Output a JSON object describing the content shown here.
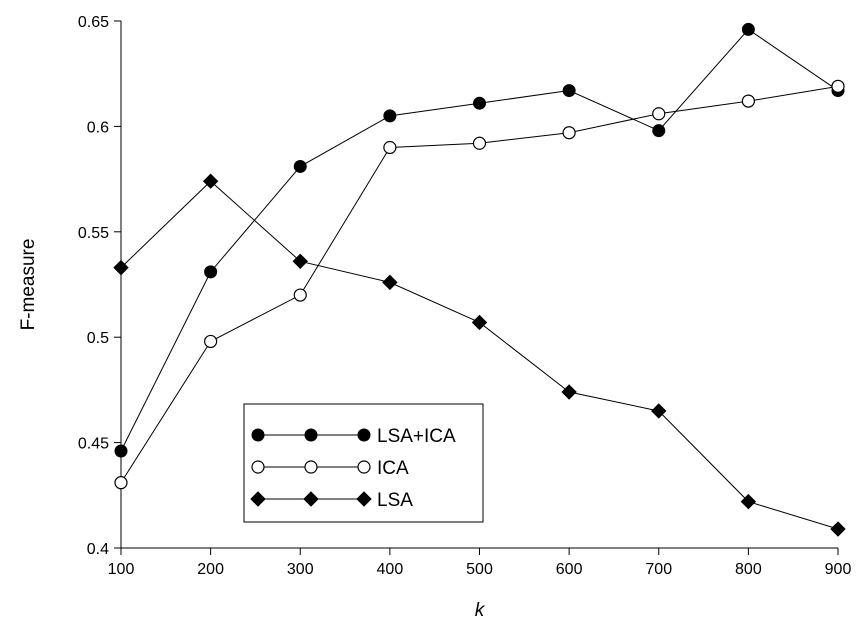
{
  "chart_data": {
    "type": "line",
    "title": "",
    "xlabel": "k",
    "ylabel": "F-measure",
    "x": [
      100,
      200,
      300,
      400,
      500,
      600,
      700,
      800,
      900
    ],
    "xlim": [
      100,
      900
    ],
    "ylim": [
      0.4,
      0.65
    ],
    "x_ticks": [
      "100",
      "200",
      "300",
      "400",
      "500",
      "600",
      "700",
      "800",
      "900"
    ],
    "y_ticks": [
      "0.4",
      "0.45",
      "0.5",
      "0.55",
      "0.6",
      "0.65"
    ],
    "grid": false,
    "legend_position": "bottom-left",
    "series": [
      {
        "name": "LSA+ICA",
        "marker": "filled-circle",
        "color": "#000000",
        "values": [
          0.446,
          0.531,
          0.581,
          0.605,
          0.611,
          0.617,
          0.598,
          0.646,
          0.617
        ]
      },
      {
        "name": "ICA",
        "marker": "open-circle",
        "color": "#000000",
        "values": [
          0.431,
          0.498,
          0.52,
          0.59,
          0.592,
          0.597,
          0.606,
          0.612,
          0.619
        ]
      },
      {
        "name": "LSA",
        "marker": "filled-diamond",
        "color": "#000000",
        "values": [
          0.533,
          0.574,
          0.536,
          0.526,
          0.507,
          0.474,
          0.465,
          0.422,
          0.409
        ]
      }
    ]
  }
}
